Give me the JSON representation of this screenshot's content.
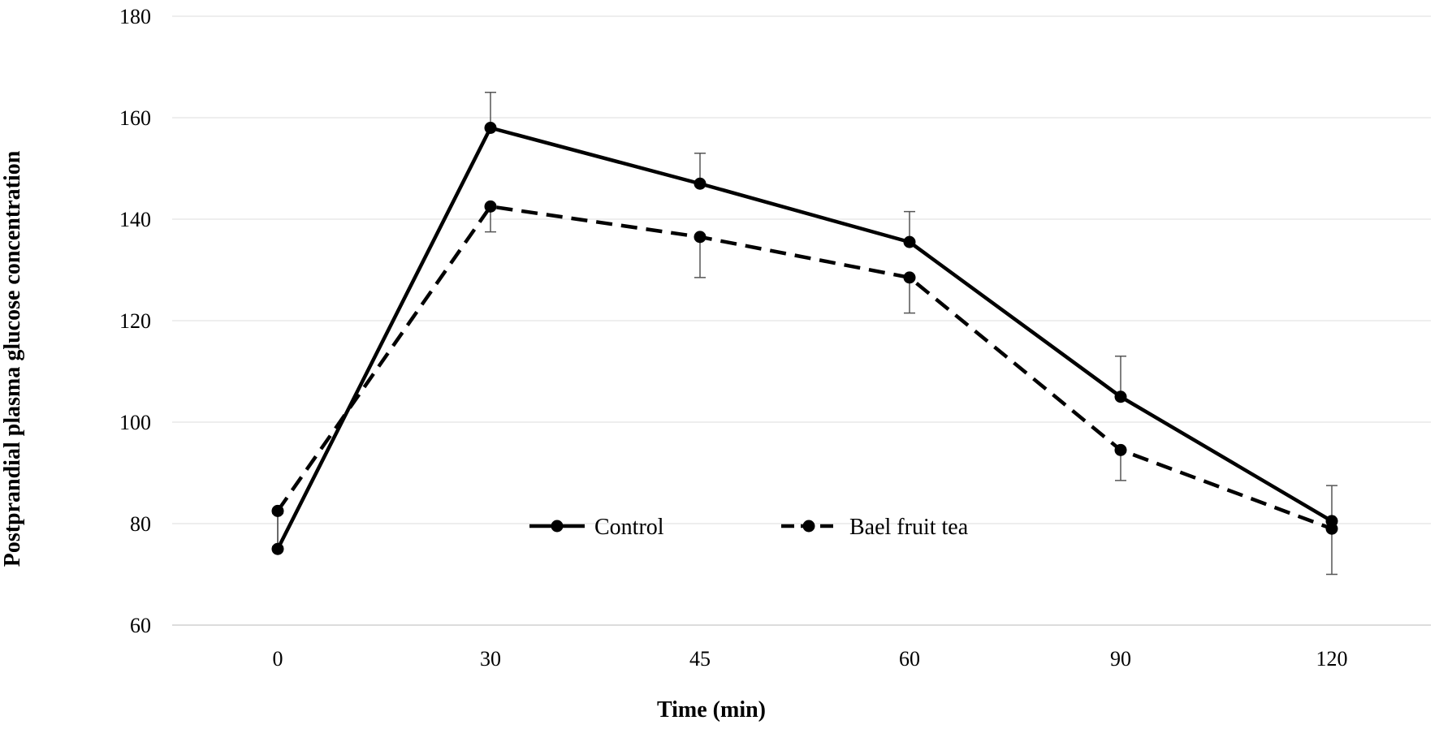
{
  "chart_data": {
    "type": "line",
    "title": "",
    "xlabel": "Time (min)",
    "ylabel": "Postprandial plasma glucose  concentration",
    "categories": [
      "0",
      "30",
      "45",
      "60",
      "90",
      "120"
    ],
    "ylim": [
      60,
      180
    ],
    "yticks": [
      60,
      80,
      100,
      120,
      140,
      160,
      180
    ],
    "grid": "horizontal",
    "legend_position": "center-bottom",
    "series": [
      {
        "name": "Control",
        "style": "solid",
        "color": "#000000",
        "values": [
          75,
          158,
          147,
          135.5,
          105,
          80.5
        ],
        "error_plus": [
          7,
          7,
          6,
          6,
          8,
          7
        ]
      },
      {
        "name": "Bael fruit tea",
        "style": "dashed",
        "color": "#000000",
        "values": [
          82.5,
          142.5,
          136.5,
          128.5,
          94.5,
          79
        ],
        "error_minus": [
          7,
          5,
          8,
          7,
          6,
          9
        ]
      }
    ]
  }
}
